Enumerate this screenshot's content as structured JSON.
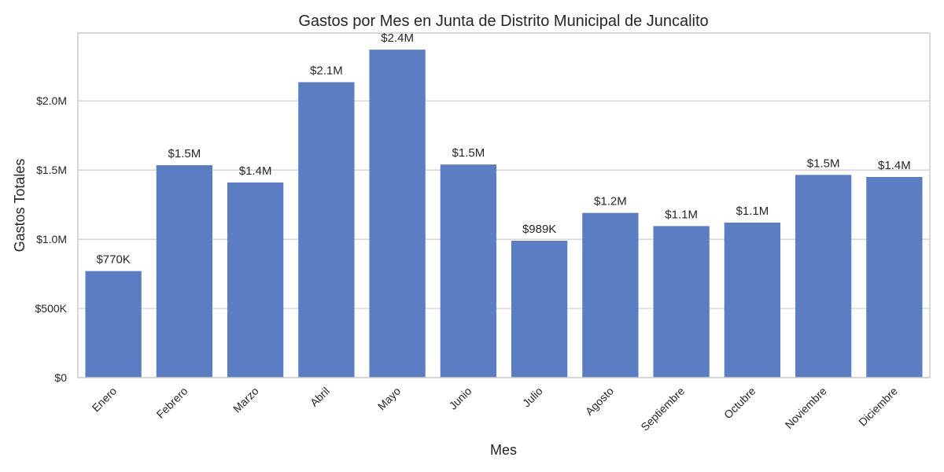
{
  "chart_data": {
    "type": "bar",
    "title": "Gastos por Mes en Junta de Distrito Municipal de Juncalito",
    "xlabel": "Mes",
    "ylabel": "Gastos Totales",
    "categories": [
      "Enero",
      "Febrero",
      "Marzo",
      "Abril",
      "Mayo",
      "Junio",
      "Julio",
      "Agosto",
      "Septiembre",
      "Octubre",
      "Noviembre",
      "Diciembre"
    ],
    "values": [
      770000,
      1535000,
      1410000,
      2135000,
      2370000,
      1540000,
      989000,
      1190000,
      1095000,
      1120000,
      1465000,
      1450000
    ],
    "data_labels": [
      "$770K",
      "$1.5M",
      "$1.4M",
      "$2.1M",
      "$2.4M",
      "$1.5M",
      "$989K",
      "$1.2M",
      "$1.1M",
      "$1.1M",
      "$1.5M",
      "$1.4M"
    ],
    "ylim": [
      0,
      2490000
    ],
    "yticks": [
      0,
      500000,
      1000000,
      1500000,
      2000000
    ],
    "ytick_labels": [
      "$0",
      "$500K",
      "$1.0M",
      "$1.5M",
      "$2.0M"
    ],
    "grid": true,
    "bar_color": "#5b7ec2",
    "grid_color": "#cccccc",
    "frame_color": "#cccccc"
  }
}
